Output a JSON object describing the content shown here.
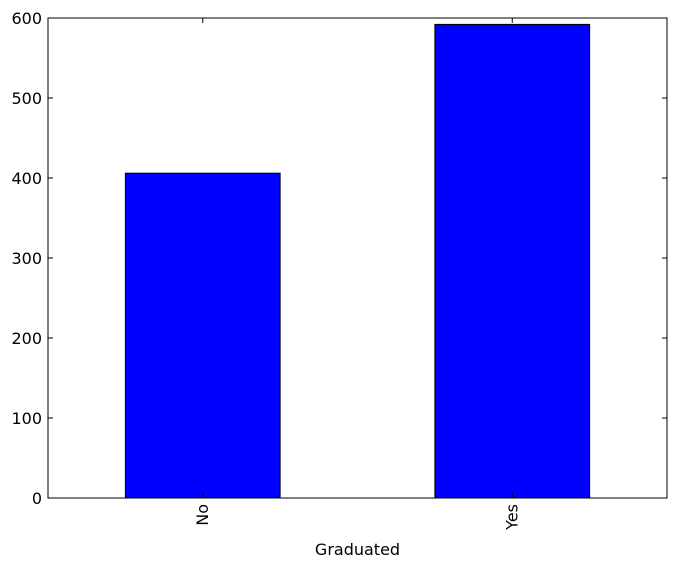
{
  "chart_data": {
    "type": "bar",
    "title": "",
    "xlabel": "Graduated",
    "ylabel": "",
    "categories": [
      "No",
      "Yes"
    ],
    "values": [
      406,
      592
    ],
    "ylim": [
      0,
      600
    ],
    "yticks": [
      0,
      100,
      200,
      300,
      400,
      500,
      600
    ],
    "ytick_labels": [
      "0",
      "100",
      "200",
      "300",
      "400",
      "500",
      "600"
    ],
    "x_tick_rotation": "vertical",
    "grid": false,
    "legend": "none",
    "colors": {
      "bar": "#0000ff",
      "edge": "#000000",
      "axes": "#000000",
      "background": "#ffffff"
    }
  }
}
